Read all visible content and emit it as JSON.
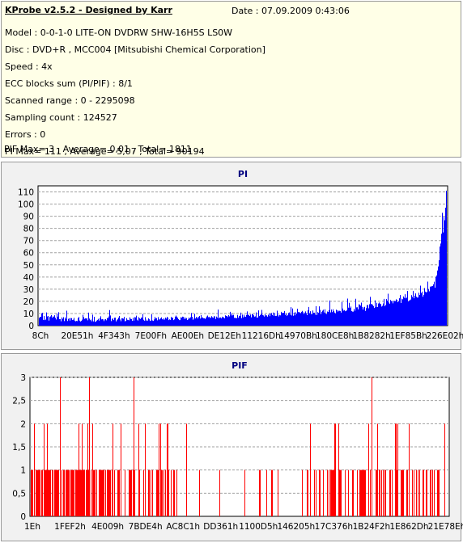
{
  "info": {
    "title": "KProbe v2.5.2 - Designed by Karr",
    "date": "Date : 07.09.2009 0:43:06",
    "lines": [
      "Model : 0-0-1-0 LITE-ON DVDRW SHW-16H5S  LS0W",
      "Disc : DVD+R , MCC004 [Mitsubishi Chemical Corporation]",
      "Speed : 4x",
      "ECC blocks sum (PI/PIF) : 8/1",
      "Scanned range : 0 - 2295098",
      "Sampling count : 124527",
      "Errors : 0",
      "PI Max= 111 , Average= 5,07 , Total= 90194",
      "PIF Max= 3 , Average= 0,01 , Total= 1811"
    ]
  },
  "chart_data": [
    {
      "type": "bar",
      "title": "PI",
      "color": "#0000ff",
      "ylim": [
        0,
        115
      ],
      "yticks": [
        "0",
        "10",
        "20",
        "30",
        "40",
        "50",
        "60",
        "70",
        "80",
        "90",
        "100",
        "110"
      ],
      "xticks": [
        "8Ch",
        "20E51h",
        "4F343h",
        "7E00Fh",
        "AE00Eh",
        "DE12Eh",
        "11216Dh",
        "14970Bh",
        "180CE8h",
        "1B8282h",
        "1EF85Bh",
        "226E02h"
      ],
      "profile": [
        {
          "x": 0.0,
          "base": 5,
          "peak": 9
        },
        {
          "x": 0.02,
          "base": 4,
          "peak": 13
        },
        {
          "x": 0.1,
          "base": 3,
          "peak": 9
        },
        {
          "x": 0.3,
          "base": 4,
          "peak": 10
        },
        {
          "x": 0.5,
          "base": 6,
          "peak": 12
        },
        {
          "x": 0.7,
          "base": 9,
          "peak": 17
        },
        {
          "x": 0.8,
          "base": 12,
          "peak": 21
        },
        {
          "x": 0.9,
          "base": 19,
          "peak": 28
        },
        {
          "x": 0.95,
          "base": 24,
          "peak": 35
        },
        {
          "x": 0.975,
          "base": 30,
          "peak": 45
        },
        {
          "x": 0.985,
          "base": 60,
          "peak": 80
        },
        {
          "x": 1.0,
          "base": 95,
          "peak": 111
        }
      ]
    },
    {
      "type": "bar",
      "title": "PIF",
      "color": "#ff0000",
      "ylim": [
        0,
        3
      ],
      "yticks": [
        "0",
        "0,5",
        "1",
        "1,5",
        "2",
        "2,5",
        "3"
      ],
      "xticks": [
        "1Eh",
        "1FEF2h",
        "4E009h",
        "7BDE4h",
        "AC8C1h",
        "DD361h",
        "1100D5h",
        "146205h",
        "17C376h",
        "1B24F2h",
        "1E862Dh",
        "21E78Eh"
      ],
      "peaks_at_3": [
        0.07,
        0.14,
        0.247,
        0.818
      ]
    }
  ]
}
